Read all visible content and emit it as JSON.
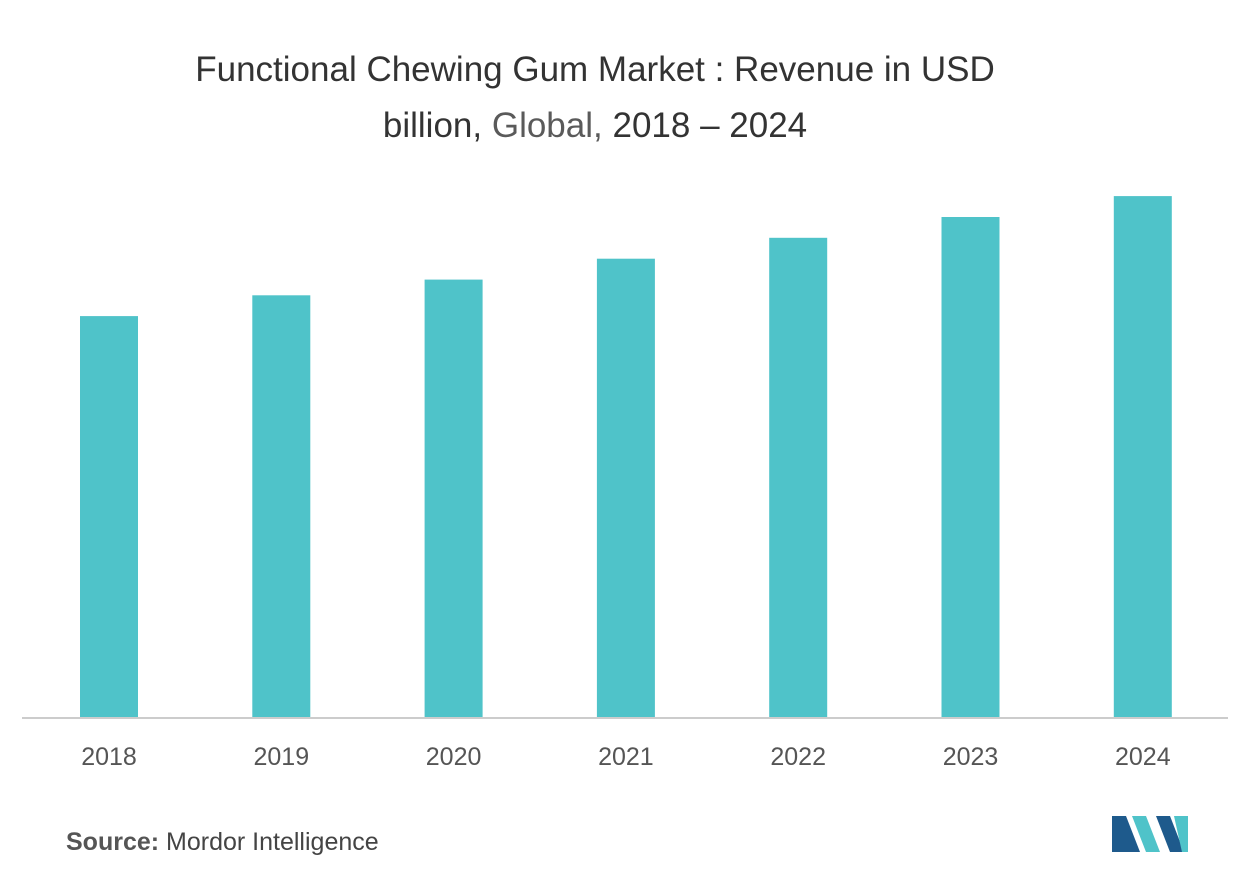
{
  "title": {
    "line1": "Functional Chewing Gum Market : Revenue in USD",
    "line2_pre": "billion,",
    "line2_region": "Global,",
    "line2_years": "2018 – 2024"
  },
  "source": {
    "label": "Source:",
    "name": "Mordor Intelligence"
  },
  "colors": {
    "bar": "#4FC3C9",
    "axis": "#cccccc",
    "logo_dark": "#1e5a8c",
    "logo_light": "#4fc3c9"
  },
  "chart_data": {
    "type": "bar",
    "categories": [
      "2018",
      "2019",
      "2020",
      "2021",
      "2022",
      "2023",
      "2024"
    ],
    "values": [
      0.77,
      0.81,
      0.84,
      0.88,
      0.92,
      0.96,
      1.0
    ],
    "title": "Functional Chewing Gum Market : Revenue in USD billion, Global, 2018 – 2024",
    "xlabel": "",
    "ylabel": "",
    "ylim": [
      0,
      1.05
    ],
    "grid": false,
    "legend": "none"
  }
}
